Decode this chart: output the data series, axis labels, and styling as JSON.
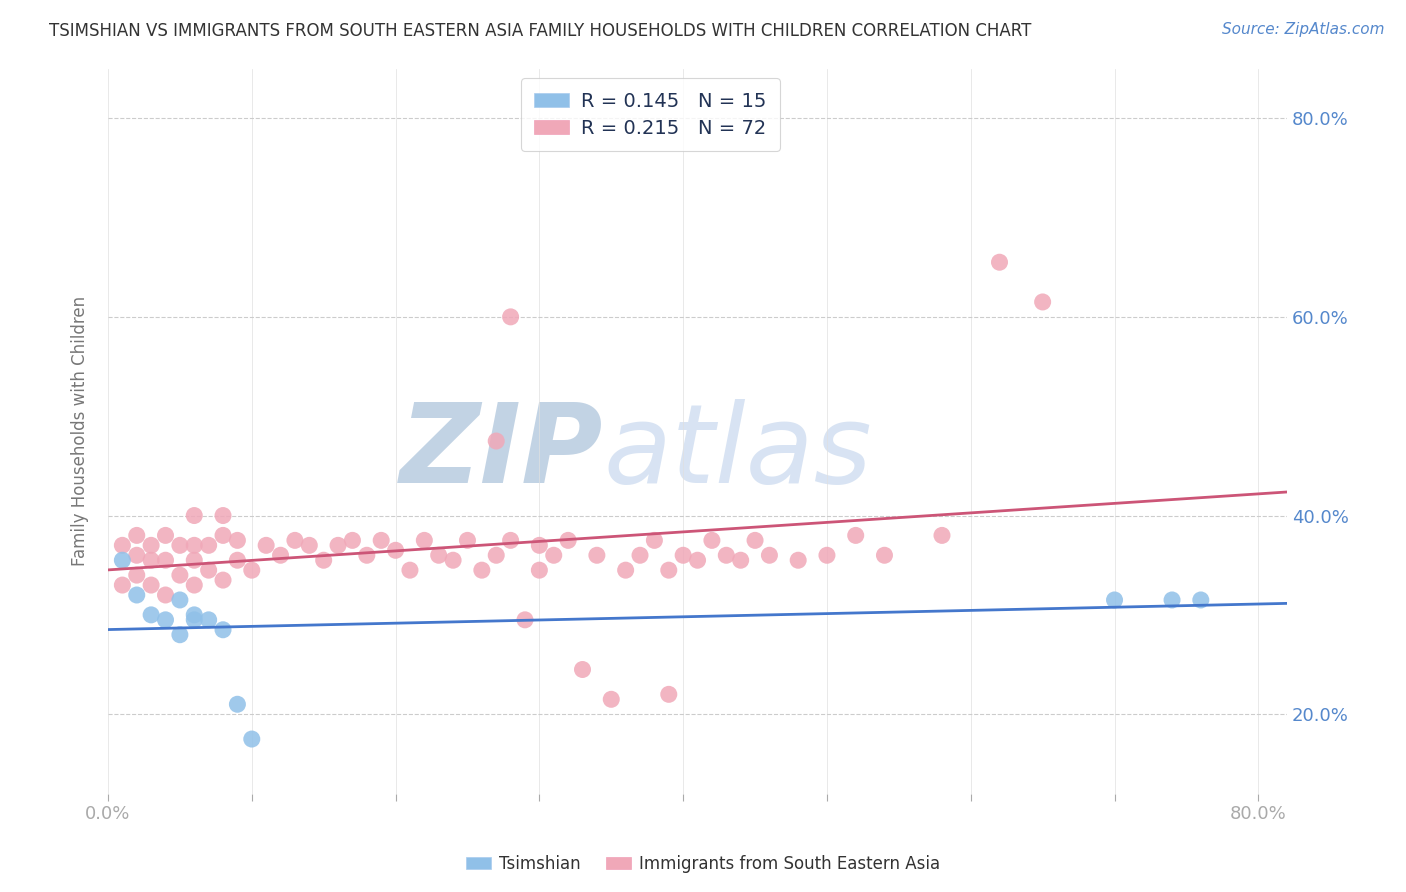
{
  "title": "TSIMSHIAN VS IMMIGRANTS FROM SOUTH EASTERN ASIA FAMILY HOUSEHOLDS WITH CHILDREN CORRELATION CHART",
  "source_text": "Source: ZipAtlas.com",
  "ylabel": "Family Households with Children",
  "xlim": [
    0.0,
    0.82
  ],
  "ylim": [
    0.12,
    0.85
  ],
  "yticks": [
    0.2,
    0.4,
    0.6,
    0.8
  ],
  "ytick_labels": [
    "20.0%",
    "40.0%",
    "60.0%",
    "80.0%"
  ],
  "xticks": [
    0.0,
    0.1,
    0.2,
    0.3,
    0.4,
    0.5,
    0.6,
    0.7,
    0.8
  ],
  "legend_label_ts": "R = 0.145   N = 15",
  "legend_label_im": "R = 0.215   N = 72",
  "watermark": "ZIPatlas",
  "watermark_color": "#c8d8ee",
  "tsimshian_color": "#90c0e8",
  "tsimshian_line_color": "#4477cc",
  "immigrants_color": "#f0a8b8",
  "immigrants_line_color": "#cc5577",
  "tsimshian_x": [
    0.01,
    0.02,
    0.03,
    0.04,
    0.05,
    0.05,
    0.06,
    0.06,
    0.07,
    0.08,
    0.09,
    0.1,
    0.7,
    0.74,
    0.76
  ],
  "tsimshian_y": [
    0.355,
    0.32,
    0.3,
    0.295,
    0.315,
    0.28,
    0.3,
    0.295,
    0.295,
    0.285,
    0.21,
    0.175,
    0.315,
    0.315,
    0.315
  ],
  "immigrants_x": [
    0.01,
    0.01,
    0.02,
    0.02,
    0.02,
    0.03,
    0.03,
    0.03,
    0.04,
    0.04,
    0.04,
    0.05,
    0.05,
    0.06,
    0.06,
    0.06,
    0.06,
    0.07,
    0.07,
    0.08,
    0.08,
    0.08,
    0.09,
    0.09,
    0.1,
    0.11,
    0.12,
    0.13,
    0.14,
    0.15,
    0.16,
    0.17,
    0.18,
    0.19,
    0.2,
    0.21,
    0.22,
    0.23,
    0.24,
    0.25,
    0.26,
    0.27,
    0.28,
    0.29,
    0.3,
    0.3,
    0.31,
    0.32,
    0.33,
    0.34,
    0.35,
    0.36,
    0.37,
    0.38,
    0.39,
    0.39,
    0.4,
    0.41,
    0.42,
    0.43,
    0.44,
    0.45,
    0.46,
    0.48,
    0.5,
    0.52,
    0.54,
    0.58,
    0.62,
    0.65,
    0.27,
    0.28
  ],
  "immigrants_y": [
    0.33,
    0.37,
    0.34,
    0.36,
    0.38,
    0.33,
    0.355,
    0.37,
    0.32,
    0.355,
    0.38,
    0.34,
    0.37,
    0.33,
    0.355,
    0.37,
    0.4,
    0.345,
    0.37,
    0.335,
    0.38,
    0.4,
    0.355,
    0.375,
    0.345,
    0.37,
    0.36,
    0.375,
    0.37,
    0.355,
    0.37,
    0.375,
    0.36,
    0.375,
    0.365,
    0.345,
    0.375,
    0.36,
    0.355,
    0.375,
    0.345,
    0.36,
    0.375,
    0.295,
    0.37,
    0.345,
    0.36,
    0.375,
    0.245,
    0.36,
    0.215,
    0.345,
    0.36,
    0.375,
    0.345,
    0.22,
    0.36,
    0.355,
    0.375,
    0.36,
    0.355,
    0.375,
    0.36,
    0.355,
    0.36,
    0.38,
    0.36,
    0.38,
    0.655,
    0.615,
    0.475,
    0.6
  ],
  "background_color": "#ffffff",
  "grid_color": "#cccccc",
  "tick_label_color": "#5588cc",
  "title_color": "#333333",
  "ylabel_color": "#777777",
  "legend_text_color": "#223355",
  "bottom_legend_text_color": "#333333"
}
